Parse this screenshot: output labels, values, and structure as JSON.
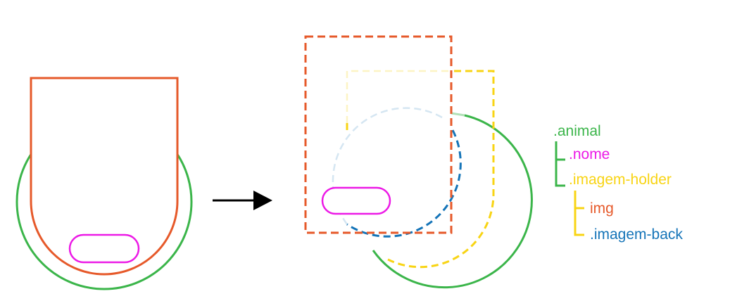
{
  "colors": {
    "animal": "#3bb54a",
    "nome": "#ec1ae6",
    "imagem_holder": "#f8d414",
    "img": "#e6592a",
    "imagem_back": "#1474b8",
    "arrow": "#000000"
  },
  "tree": {
    "animal": ".animal",
    "nome": ".nome",
    "imagem_holder": ".imagem-holder",
    "img": "img",
    "imagem_back": ".imagem-back"
  }
}
